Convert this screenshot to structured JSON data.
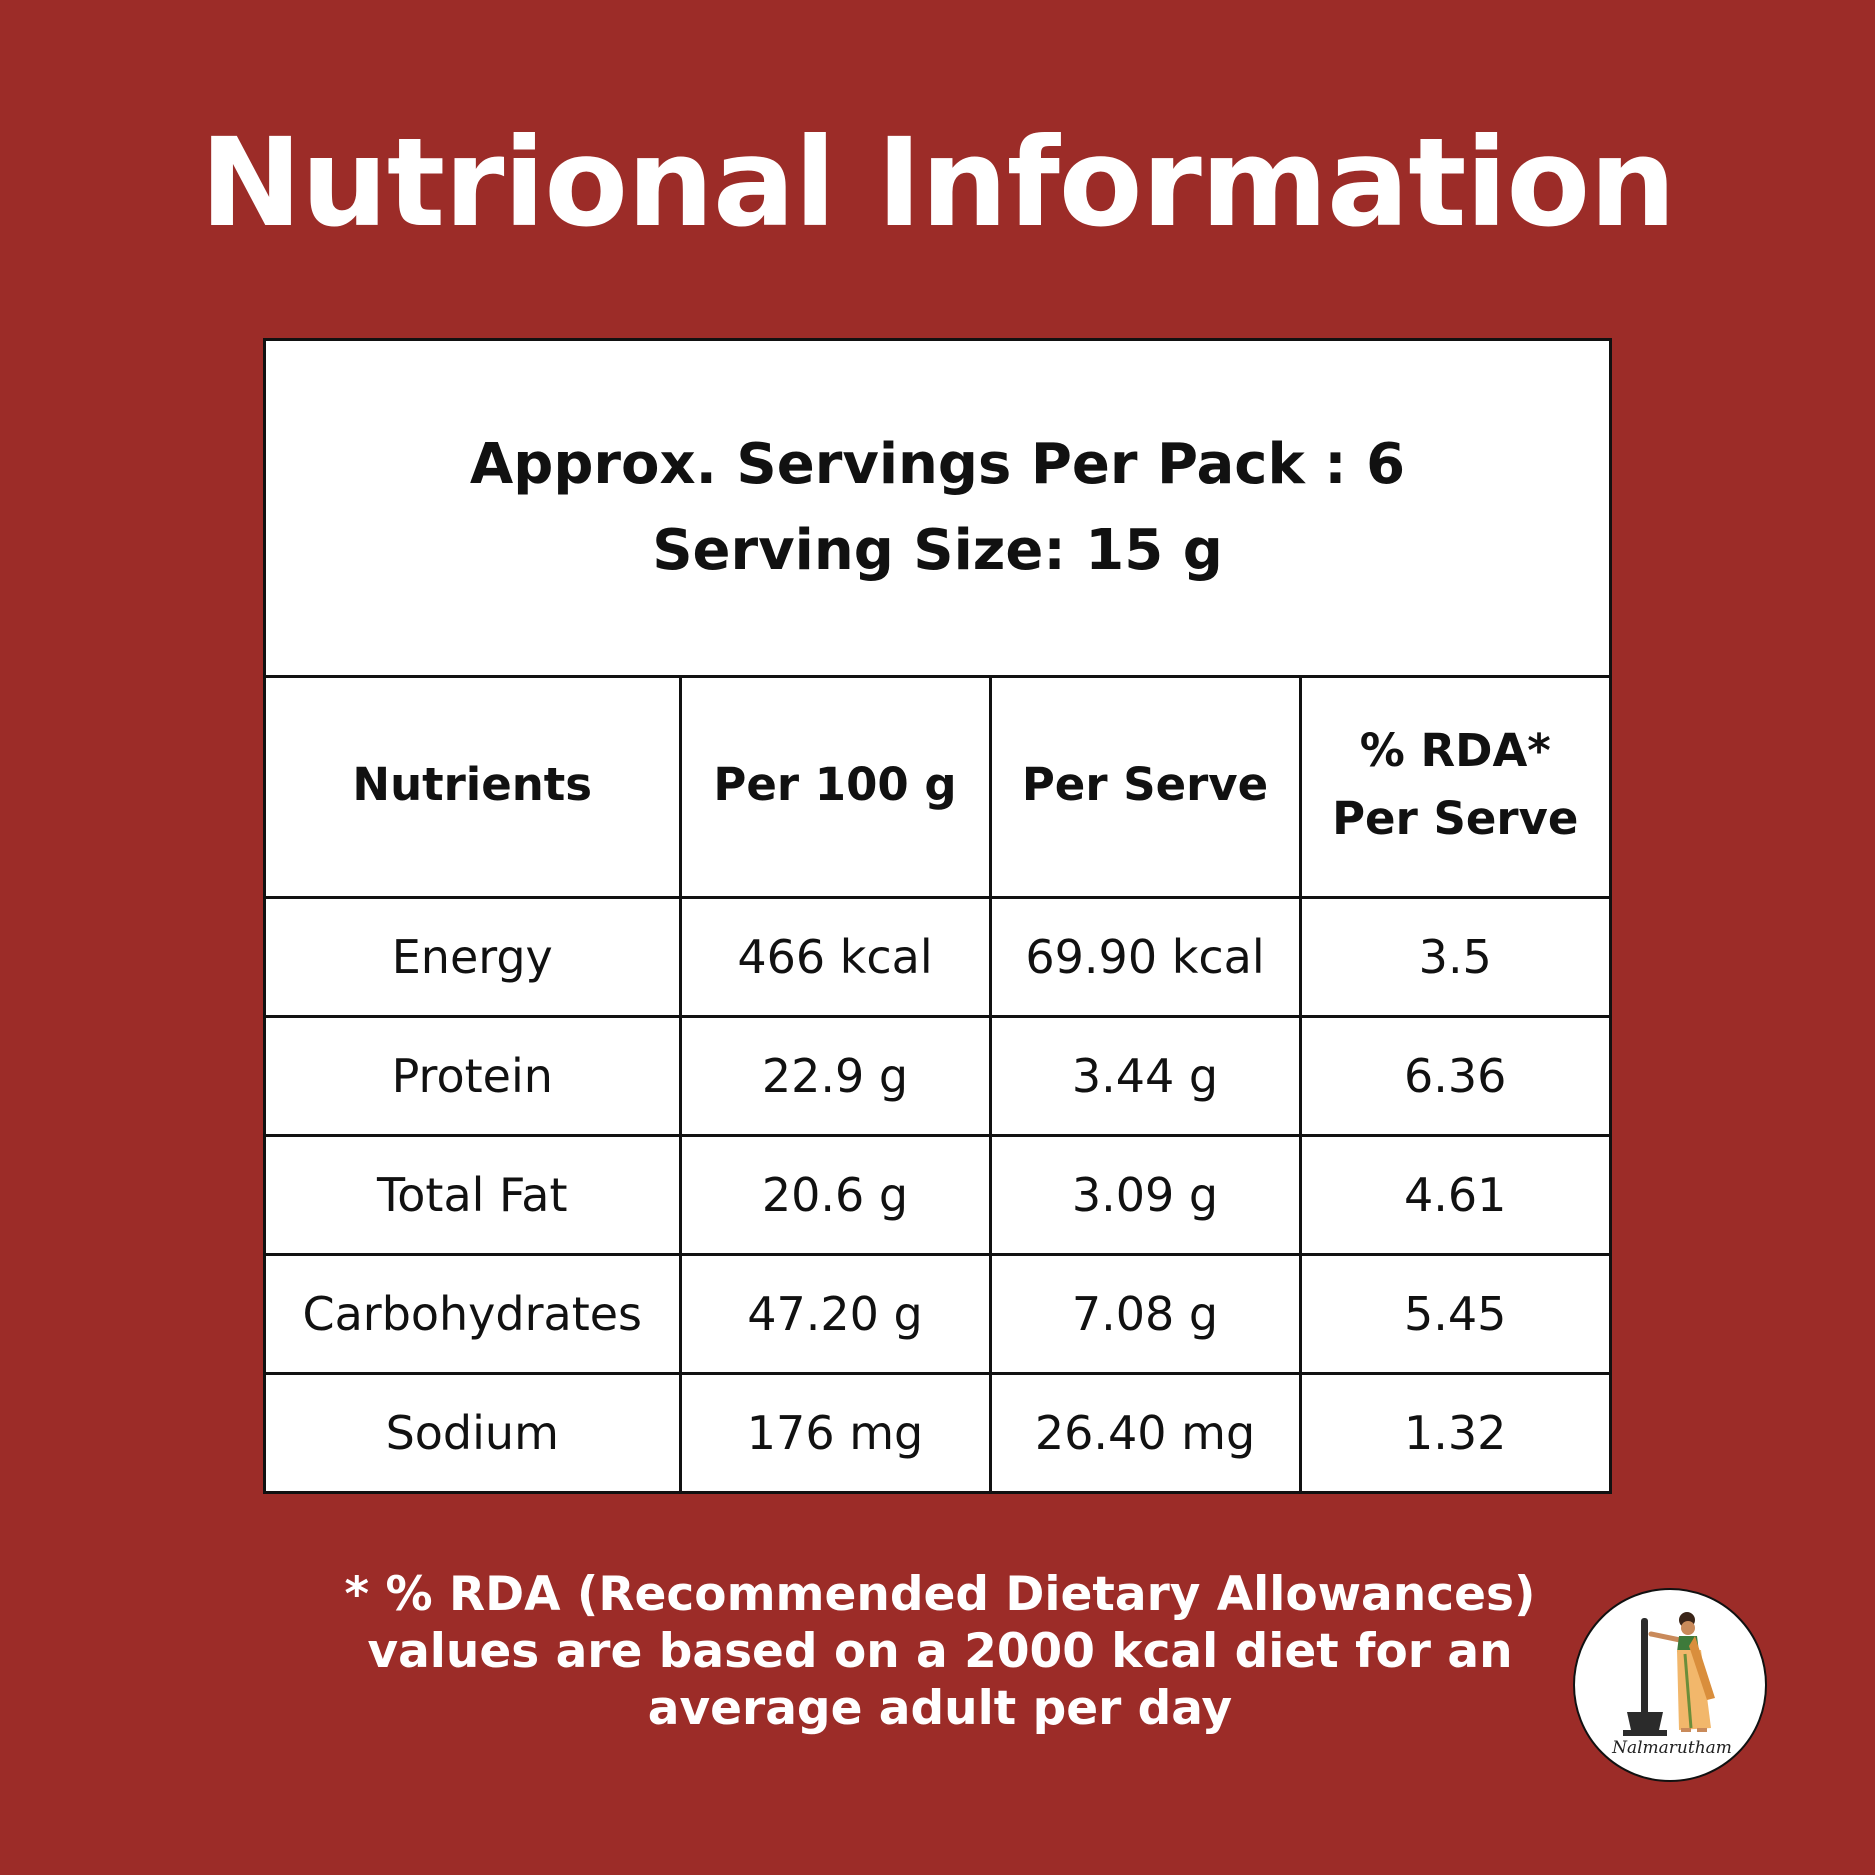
{
  "colors": {
    "background": "#9C2C28",
    "text_on_background": "#FFFFFF",
    "table_background": "#FFFFFF",
    "table_border": "#111111",
    "table_text": "#111111"
  },
  "title": "Nutrional Information",
  "serving_info": {
    "servings_per_pack": "Approx. Servings Per Pack : 6",
    "serving_size": "Serving Size: 15 g"
  },
  "table": {
    "headers": {
      "nutrients": "Nutrients",
      "per_100g": "Per 100 g",
      "per_serve": "Per Serve",
      "rda_line1": "% RDA*",
      "rda_line2": "Per Serve"
    },
    "rows": [
      {
        "nutrient": "Energy",
        "per_100g": "466 kcal",
        "per_serve": "69.90 kcal",
        "rda": "3.5"
      },
      {
        "nutrient": "Protein",
        "per_100g": "22.9 g",
        "per_serve": "3.44 g",
        "rda": "6.36"
      },
      {
        "nutrient": "Total Fat",
        "per_100g": "20.6 g",
        "per_serve": "3.09 g",
        "rda": "4.61"
      },
      {
        "nutrient": "Carbohydrates",
        "per_100g": "47.20 g",
        "per_serve": "7.08 g",
        "rda": "5.45"
      },
      {
        "nutrient": "Sodium",
        "per_100g": "176 mg",
        "per_serve": "26.40 mg",
        "rda": "1.32"
      }
    ]
  },
  "footnote": {
    "line1": "* % RDA (Recommended Dietary Allowances)",
    "line2": "values are based on a 2000 kcal diet for an",
    "line3": "average adult per day"
  },
  "logo": {
    "brand_name": "Nalmarutham",
    "icon": "woman-pounding-grain-logo-icon"
  }
}
